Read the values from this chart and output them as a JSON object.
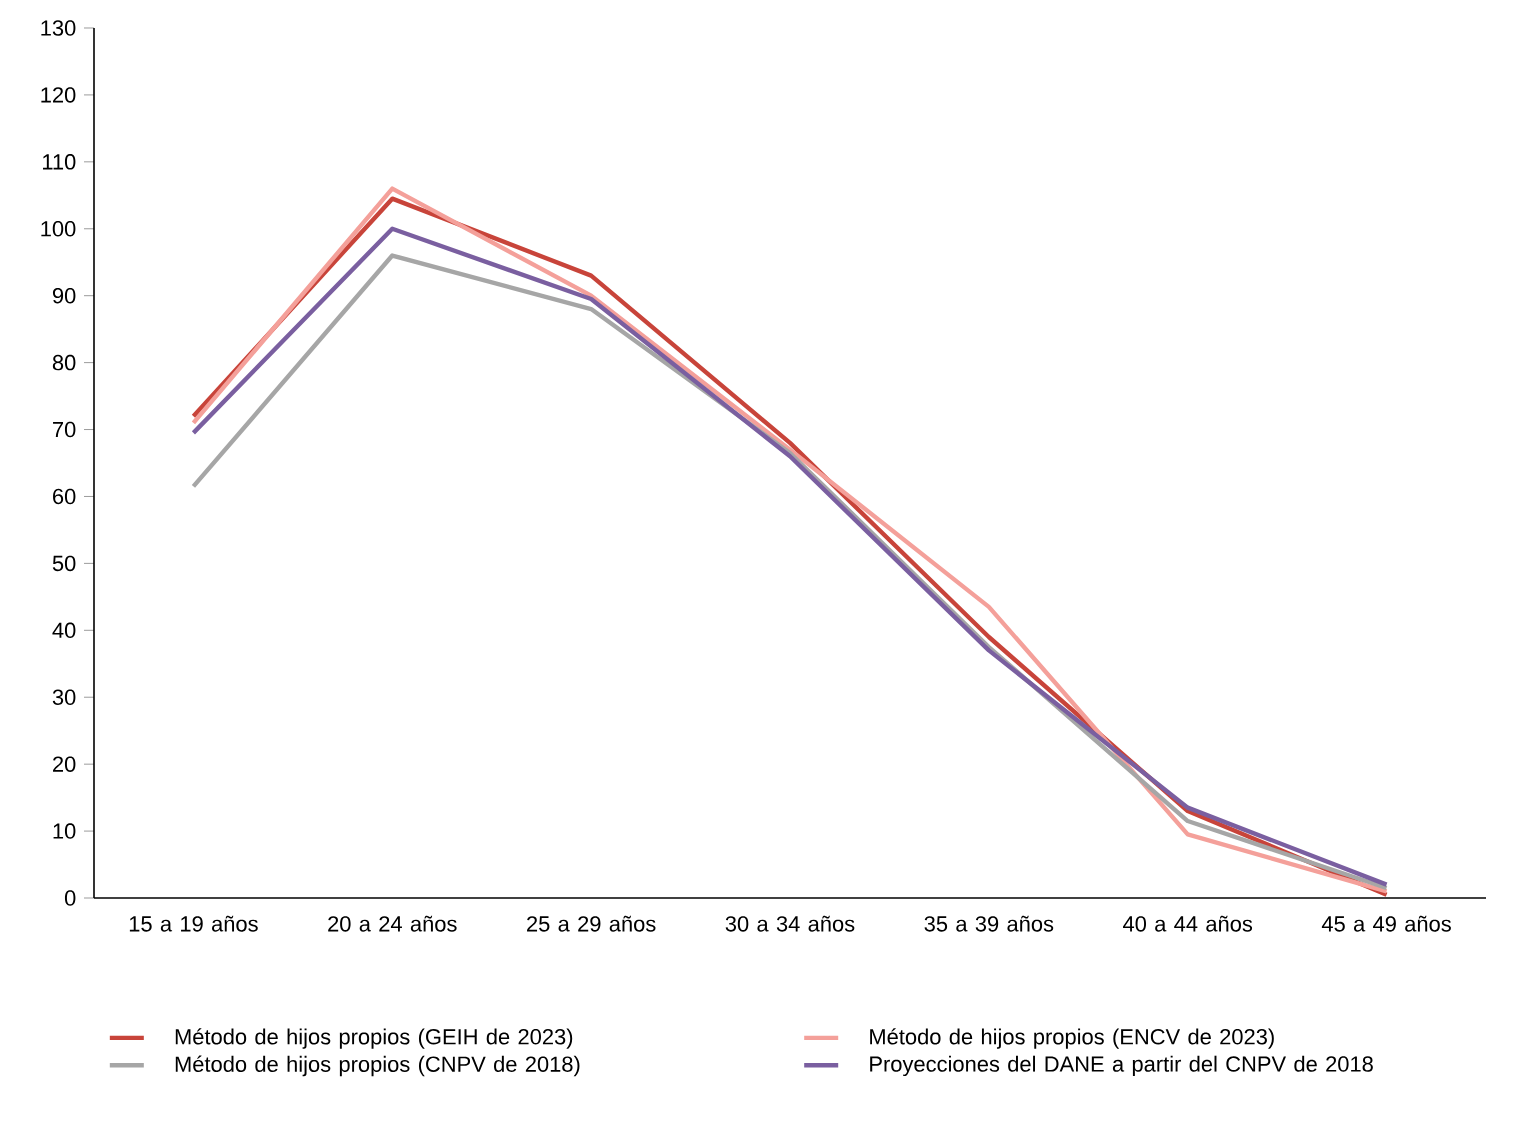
{
  "chart_data": {
    "type": "line",
    "categories": [
      "15 a 19 años",
      "20 a 24 años",
      "25 a 29 años",
      "30 a 34 años",
      "35 a 39 años",
      "40 a 44 años",
      "45 a 49 años"
    ],
    "series": [
      {
        "name": "Método de hijos propios (GEIH de 2023)",
        "color": "#c8443a",
        "values": [
          72,
          104.5,
          93,
          68,
          39,
          13,
          0.5
        ]
      },
      {
        "name": "Método de hijos propios (ENCV de 2023)",
        "color": "#f4a09a",
        "values": [
          71,
          106,
          90,
          67,
          43.5,
          9.5,
          1
        ]
      },
      {
        "name": "Método de hijos propios (CNPV de 2018)",
        "color": "#a6a6a6",
        "values": [
          61.5,
          96,
          88,
          66.5,
          37.5,
          11.5,
          1.5
        ]
      },
      {
        "name": "Proyecciones del DANE a partir del CNPV de 2018",
        "color": "#7a5fa0",
        "values": [
          69.5,
          100,
          89.5,
          66,
          37,
          13.5,
          2
        ]
      }
    ],
    "ylim": [
      0,
      130
    ],
    "yticks": [
      0,
      10,
      20,
      30,
      40,
      50,
      60,
      70,
      80,
      90,
      100,
      110,
      120,
      130
    ],
    "grid": false,
    "legend": "bottom",
    "marker": "none",
    "line_style": "solid"
  }
}
